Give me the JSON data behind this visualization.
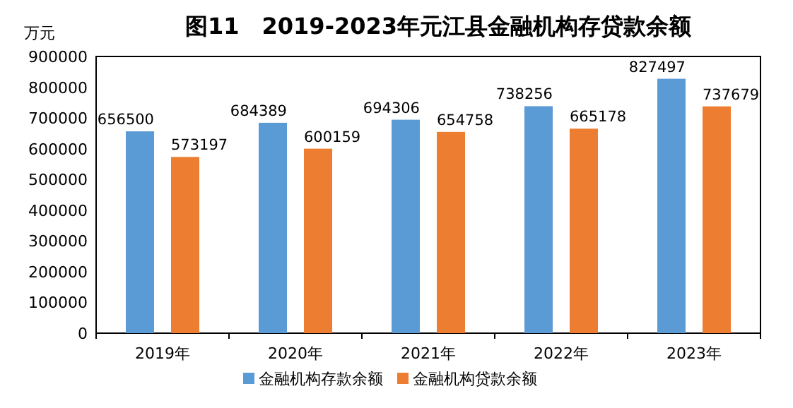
{
  "chart_data": {
    "type": "bar",
    "title": "图11　2019-2023年元江县金融机构存贷款余额",
    "ylabel": "万元",
    "categories": [
      "2019年",
      "2020年",
      "2021年",
      "2022年",
      "2023年"
    ],
    "series": [
      {
        "name": "金融机构存款余额",
        "color": "#5b9bd5",
        "values": [
          656500,
          684389,
          694306,
          738256,
          827497
        ]
      },
      {
        "name": "金融机构贷款余额",
        "color": "#ed7d31",
        "values": [
          573197,
          600159,
          654758,
          665178,
          737679
        ]
      }
    ],
    "ylim": [
      0,
      900000
    ],
    "yticks": [
      0,
      100000,
      200000,
      300000,
      400000,
      500000,
      600000,
      700000,
      800000,
      900000
    ],
    "data_labels": true,
    "legend": "bottom",
    "grid": false
  }
}
